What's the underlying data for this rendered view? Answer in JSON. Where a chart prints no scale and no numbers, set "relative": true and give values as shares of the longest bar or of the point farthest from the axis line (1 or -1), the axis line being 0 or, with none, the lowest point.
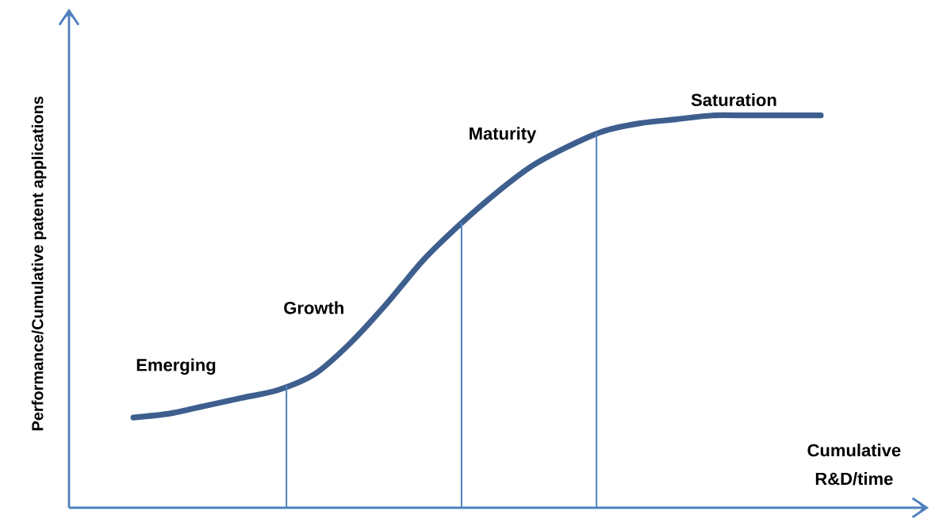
{
  "chart_data": {
    "type": "line",
    "relative": true,
    "xlabel": "Cumulative\nR&D/time",
    "ylabel": "Performance/Cumulative patent applications",
    "categories": [
      null,
      null,
      null,
      null,
      null,
      null,
      null,
      null,
      null,
      null,
      null,
      null,
      null,
      null,
      null,
      null,
      null,
      null,
      null,
      null
    ],
    "series": [
      {
        "color": "#3e5f8e",
        "values": [
          0.23,
          0.24,
          0.26,
          0.28,
          0.3,
          0.34,
          0.42,
          0.52,
          0.63,
          0.72,
          0.8,
          0.87,
          0.92,
          0.96,
          0.98,
          0.99,
          1.0,
          1.0,
          1.0,
          1.0
        ]
      }
    ],
    "annotations": [
      "Emerging",
      "Growth",
      "Maturity",
      "Saturation"
    ]
  }
}
